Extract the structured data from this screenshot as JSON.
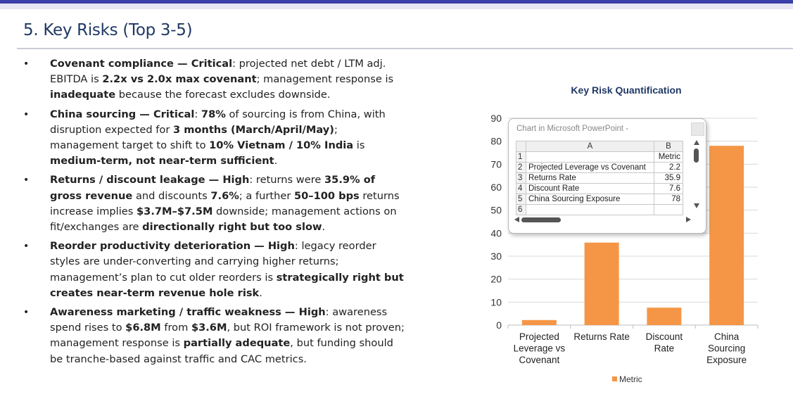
{
  "slide": {
    "title": "5. Key Risks (Top 3-5)"
  },
  "bullets": [
    {
      "parts": [
        {
          "t": "Covenant compliance — Critical",
          "b": true
        },
        {
          "t": ": projected net debt / LTM adj. EBITDA is ",
          "b": false
        },
        {
          "t": "2.2x vs 2.0x max covenant",
          "b": true
        },
        {
          "t": "; management response is ",
          "b": false
        },
        {
          "t": "inadequate",
          "b": true
        },
        {
          "t": " because the forecast excludes downside.",
          "b": false
        }
      ]
    },
    {
      "parts": [
        {
          "t": "China sourcing — Critical",
          "b": true
        },
        {
          "t": ": ",
          "b": false
        },
        {
          "t": "78%",
          "b": true
        },
        {
          "t": " of sourcing is from China, with disruption expected for ",
          "b": false
        },
        {
          "t": "3 months (March/April/May)",
          "b": true
        },
        {
          "t": "; management target to shift to ",
          "b": false
        },
        {
          "t": "10% Vietnam / 10% India",
          "b": true
        },
        {
          "t": " is ",
          "b": false
        },
        {
          "t": "medium-term, not near-term sufficient",
          "b": true
        },
        {
          "t": ".",
          "b": false
        }
      ]
    },
    {
      "parts": [
        {
          "t": "Returns / discount leakage — High",
          "b": true
        },
        {
          "t": ": returns were ",
          "b": false
        },
        {
          "t": "35.9% of gross revenue",
          "b": true
        },
        {
          "t": " and discounts ",
          "b": false
        },
        {
          "t": "7.6%",
          "b": true
        },
        {
          "t": "; a further ",
          "b": false
        },
        {
          "t": "50–100 bps",
          "b": true
        },
        {
          "t": " returns increase implies ",
          "b": false
        },
        {
          "t": "$3.7M–$7.5M",
          "b": true
        },
        {
          "t": " downside; management actions on fit/exchanges are ",
          "b": false
        },
        {
          "t": "directionally right but too slow",
          "b": true
        },
        {
          "t": ".",
          "b": false
        }
      ]
    },
    {
      "parts": [
        {
          "t": "Reorder productivity deterioration — High",
          "b": true
        },
        {
          "t": ": legacy reorder styles are under-converting and carrying higher returns; management’s plan to cut older reorders is ",
          "b": false
        },
        {
          "t": "strategically right but creates near-term revenue hole risk",
          "b": true
        },
        {
          "t": ".",
          "b": false
        }
      ]
    },
    {
      "parts": [
        {
          "t": "Awareness marketing / traffic weakness — High",
          "b": true
        },
        {
          "t": ": awareness spend rises to ",
          "b": false
        },
        {
          "t": "$6.8M",
          "b": true
        },
        {
          "t": " from ",
          "b": false
        },
        {
          "t": "$3.6M",
          "b": true
        },
        {
          "t": ", but ROI framework is not proven; management response is ",
          "b": false
        },
        {
          "t": "partially adequate",
          "b": true
        },
        {
          "t": ", but funding should be tranche-based against traffic and CAC metrics.",
          "b": false
        }
      ]
    }
  ],
  "chart_data": {
    "type": "bar",
    "title": "Key Risk Quantification",
    "categories": [
      "Projected Leverage vs Covenant",
      "Returns Rate",
      "Discount Rate",
      "China Sourcing Exposure"
    ],
    "category_lines": [
      [
        "Projected",
        "Leverage vs",
        "Covenant"
      ],
      [
        "Returns Rate"
      ],
      [
        "Discount",
        "Rate"
      ],
      [
        "China",
        "Sourcing",
        "Exposure"
      ]
    ],
    "series": [
      {
        "name": "Metric",
        "values": [
          2.2,
          35.9,
          7.6,
          78
        ],
        "color": "#f59647"
      }
    ],
    "yticks": [
      0,
      10,
      20,
      30,
      40,
      50,
      60,
      70,
      80,
      90
    ],
    "ylim": [
      0,
      90
    ],
    "grid": true,
    "legend": "bottom"
  },
  "sheet": {
    "title": "Chart in Microsoft PowerPoint -",
    "col_a": "A",
    "col_b": "B",
    "rows": [
      {
        "n": "1",
        "a": "",
        "b": "Metric"
      },
      {
        "n": "2",
        "a": "Projected Leverage vs Covenant",
        "b": "2.2"
      },
      {
        "n": "3",
        "a": "Returns Rate",
        "b": "35.9"
      },
      {
        "n": "4",
        "a": "Discount Rate",
        "b": "7.6"
      },
      {
        "n": "5",
        "a": "China Sourcing Exposure",
        "b": "78"
      },
      {
        "n": "6",
        "a": "",
        "b": ""
      }
    ]
  }
}
